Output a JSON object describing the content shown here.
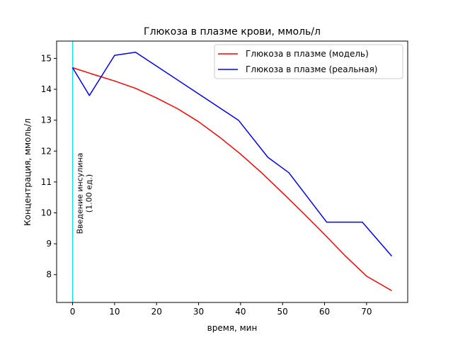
{
  "chart_data": {
    "type": "line",
    "title": "Глюкоза в плазме крови, ммоль/л",
    "xlabel": "время, мин",
    "ylabel": "Концентрация, ммоль/л",
    "xlim": [
      -3.8,
      79.8
    ],
    "ylim": [
      7.1,
      15.56
    ],
    "x_ticks": [
      0,
      10,
      20,
      30,
      40,
      50,
      60,
      70
    ],
    "y_ticks": [
      8,
      9,
      10,
      11,
      12,
      13,
      14,
      15
    ],
    "grid": false,
    "legend_position": "top-right",
    "series": [
      {
        "name": "Глюкоза в плазме (модель)",
        "color": "#ff0000",
        "x": [
          0,
          5,
          10,
          15,
          20,
          25,
          30,
          35,
          40,
          45,
          50,
          55,
          60,
          65,
          70,
          76
        ],
        "y": [
          14.7,
          14.48,
          14.27,
          14.03,
          13.72,
          13.37,
          12.95,
          12.45,
          11.9,
          11.3,
          10.65,
          9.98,
          9.3,
          8.6,
          7.95,
          7.48
        ]
      },
      {
        "name": "Глюкоза в плазме (реальная)",
        "color": "#0000ff",
        "x": [
          0,
          4,
          10,
          15,
          39.5,
          46.5,
          51.5,
          60.5,
          69,
          76
        ],
        "y": [
          14.7,
          13.8,
          15.1,
          15.2,
          13.0,
          11.8,
          11.3,
          9.7,
          9.7,
          8.6
        ]
      }
    ],
    "annotations": [
      {
        "type": "vline",
        "x": 0,
        "color": "#00e5ee",
        "label_line1": "Введение инсулина",
        "label_line2": "(1.00 ед.)"
      }
    ]
  }
}
